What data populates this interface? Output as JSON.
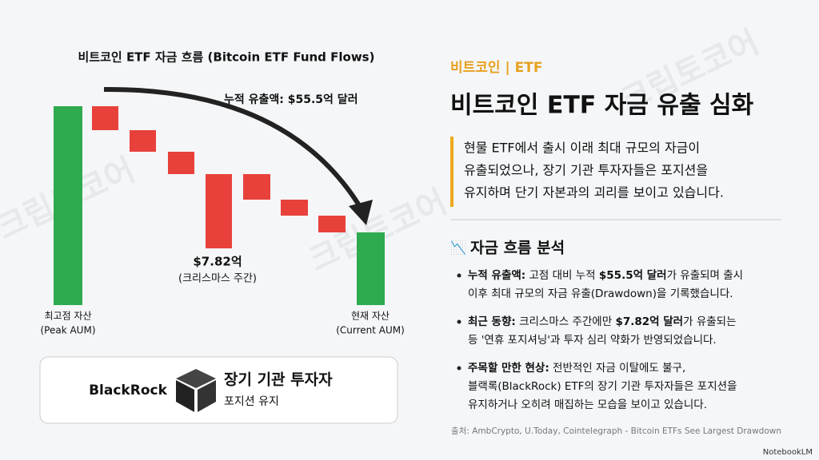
{
  "chart_panel": {
    "title": "비트코인 ETF 자금 흐름 (Bitcoin ETF Fund Flows)",
    "cumulative_label": "누적 유출액: $55.5억 달러",
    "christmas_value": "$7.82억",
    "christmas_note": "(크리스마스 주간)",
    "peak_label": "최고점 자산",
    "peak_sub": "(Peak AUM)",
    "current_label": "현재 자산",
    "current_sub": "(Current AUM)"
  },
  "card": {
    "brand": "BlackRock",
    "title": "장기 기관 투자자",
    "subtitle": "포지션 유지"
  },
  "header": {
    "tag": "비트코인 | ETF",
    "title": "비트코인 ETF 자금 유출 심화"
  },
  "summary": [
    "현물 ETF에서 출시 이래 최대 규모의 자금이",
    "유출되었으나, 장기 기관 투자자들은 포지션을",
    "유지하며 단기 자본과의 괴리를 보이고 있습니다."
  ],
  "section": {
    "icon": "📉",
    "title": "자금 흐름 분석"
  },
  "bullets": [
    [
      [
        {
          "text": "누적 유출액:",
          "bold": true
        },
        {
          "text": " 고점 대비 누적 ",
          "bold": false
        },
        {
          "text": "$55.5억 달러",
          "bold": true
        },
        {
          "text": "가 유출되며 출시",
          "bold": false
        }
      ],
      [
        {
          "text": "이후 최대 규모의 자금 유출(Drawdown)을 기록했습니다.",
          "bold": false
        }
      ]
    ],
    [
      [
        {
          "text": "최근 동향:",
          "bold": true
        },
        {
          "text": " 크리스마스 주간에만 ",
          "bold": false
        },
        {
          "text": "$7.82억 달러",
          "bold": true
        },
        {
          "text": "가 유출되는",
          "bold": false
        }
      ],
      [
        {
          "text": "등 '연휴 포지셔닝'과 투자 심리 약화가 반영되었습니다.",
          "bold": false
        }
      ]
    ],
    [
      [
        {
          "text": "주목할 만한 현상:",
          "bold": true
        },
        {
          "text": " 전반적인 자금 이탈에도 불구,",
          "bold": false
        }
      ],
      [
        {
          "text": "블랙록(BlackRock) ETF의 장기 기관 투자자들은 포지션을",
          "bold": false
        }
      ],
      [
        {
          "text": "유지하거나 오히려 매집하는 모습을 보이고 있습니다.",
          "bold": false
        }
      ]
    ]
  ],
  "source": "출처: AmbCrypto, U.Today, Cointelegraph - Bitcoin ETFs See Largest Drawdown",
  "watermark": "크립토코어",
  "footer": "NotebookLM"
}
